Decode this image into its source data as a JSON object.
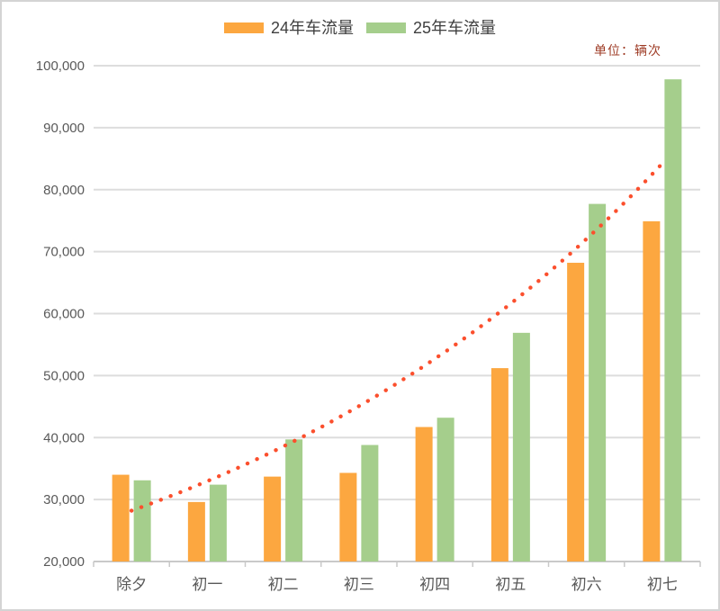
{
  "legend": {
    "series": [
      {
        "label": "24年车流量",
        "color": "#FCA740"
      },
      {
        "label": "25年车流量",
        "color": "#A5CE8C"
      }
    ]
  },
  "unit_label": "单位：辆次",
  "colors": {
    "axis_text": "#595959",
    "legend_text": "#3F3F3F",
    "unit_text": "#9E3B25",
    "gridline": "#DDDDDD",
    "axis_line": "#C9C9C9",
    "frame_border": "#D4D4D4",
    "trendline": "#FB4F2D",
    "bar_24": "#FCA740",
    "bar_25": "#A5CE8C"
  },
  "chart_data": {
    "type": "bar",
    "title": "",
    "unit": "辆次",
    "categories": [
      "除夕",
      "初一",
      "初二",
      "初三",
      "初四",
      "初五",
      "初六",
      "初七"
    ],
    "series": [
      {
        "name": "24年车流量",
        "color": "#FCA740",
        "values": [
          34000,
          29600,
          33700,
          34300,
          41700,
          51200,
          68200,
          74900
        ]
      },
      {
        "name": "25年车流量",
        "color": "#A5CE8C",
        "values": [
          33100,
          32400,
          39700,
          38800,
          43200,
          56900,
          77700,
          97800
        ]
      }
    ],
    "trendline": {
      "style": "dotted",
      "shape": "exponential",
      "color": "#FB4F2D",
      "values": [
        28200,
        32970,
        38550,
        45070,
        52700,
        61610,
        72040,
        84230
      ]
    },
    "ylim": [
      20000,
      100000
    ],
    "y_tick_step": 10000,
    "y_ticks": [
      "100,000",
      "90,000",
      "80,000",
      "70,000",
      "60,000",
      "50,000",
      "40,000",
      "30,000",
      "20,000"
    ],
    "grid": true,
    "legend_position": "top"
  }
}
